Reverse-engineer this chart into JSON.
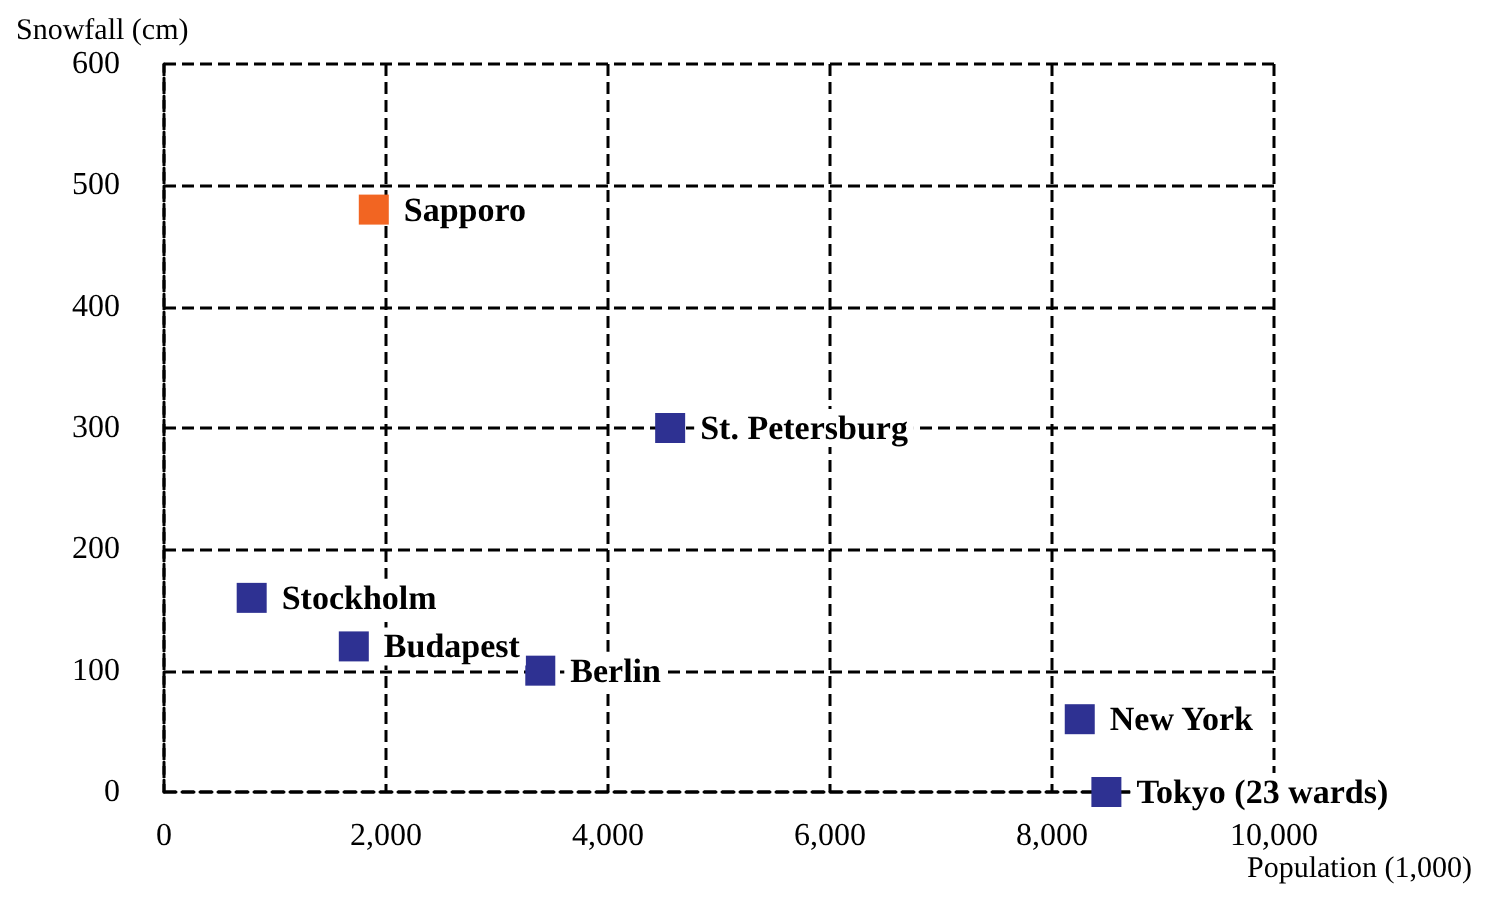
{
  "chart_data": {
    "type": "scatter",
    "xlabel": "Population (1,000)",
    "ylabel": "Snowfall (cm)",
    "x": [
      1890,
      4560,
      790,
      1710,
      3390,
      8250,
      8490
    ],
    "values": [
      480,
      300,
      160,
      120,
      100,
      60,
      0
    ],
    "colors": [
      "#f26522",
      "#2e3192",
      "#2e3192",
      "#2e3192",
      "#2e3192",
      "#2e3192",
      "#2e3192"
    ],
    "xlim": [
      0,
      10000
    ],
    "xticks": [
      {
        "value": 0,
        "label": "0"
      },
      {
        "value": 2000,
        "label": "2,000"
      },
      {
        "value": 4000,
        "label": "4,000"
      },
      {
        "value": 6000,
        "label": "6,000"
      },
      {
        "value": 8000,
        "label": "8,000"
      },
      {
        "value": 10000,
        "label": "10,000"
      }
    ],
    "ylim": [
      0,
      600
    ],
    "yticks": [
      0,
      100,
      200,
      300,
      400,
      500,
      600
    ],
    "grid": true,
    "marker": "square",
    "annotations": [
      {
        "text": "Sapporo",
        "x": 1890,
        "y": 480
      },
      {
        "text": "St. Petersburg",
        "x": 4560,
        "y": 300
      },
      {
        "text": "Stockholm",
        "x": 790,
        "y": 160
      },
      {
        "text": "Budapest",
        "x": 1710,
        "y": 120
      },
      {
        "text": "Berlin",
        "x": 3390,
        "y": 100
      },
      {
        "text": "New York",
        "x": 8250,
        "y": 60
      },
      {
        "text": "Tokyo (23 wards)",
        "x": 8490,
        "y": 0
      }
    ]
  }
}
